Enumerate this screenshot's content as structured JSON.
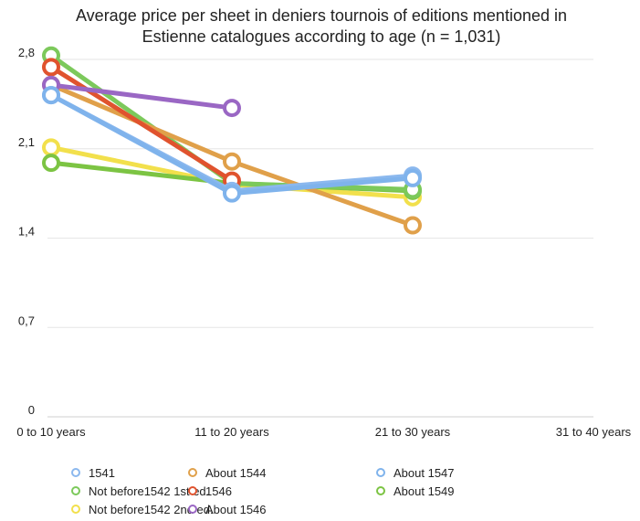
{
  "chart_data": {
    "type": "line",
    "title_lines": [
      "Average price per sheet in deniers tournois of editions mentioned in",
      "Estienne catalogues according to age (n = 1,031)"
    ],
    "categories": [
      "0 to 10 years",
      "11 to 20 years",
      "21 to 30 years",
      "31 to 40 years"
    ],
    "y_ticks": [
      "0",
      "0,7",
      "1,4",
      "2,1",
      "2,8"
    ],
    "ylim": [
      0,
      2.8
    ],
    "grid": true,
    "legend_position": "bottom",
    "series": [
      {
        "name": "1541",
        "color": "#8bb8ee",
        "values": [
          2.52,
          1.77,
          1.89,
          null
        ]
      },
      {
        "name": "About 1544",
        "color": "#e0a04a",
        "values": [
          2.6,
          2.0,
          1.5,
          null
        ]
      },
      {
        "name": "About 1547",
        "color": "#7fb3ec",
        "values": [
          2.52,
          1.75,
          1.87,
          null
        ]
      },
      {
        "name": "Not before1542 1st ed.",
        "color": "#7cc95b",
        "values": [
          2.83,
          1.83,
          1.78,
          null
        ]
      },
      {
        "name": "1546",
        "color": "#e0532e",
        "values": [
          2.74,
          1.85,
          null,
          null
        ]
      },
      {
        "name": "About 1549",
        "color": "#7cc443",
        "values": [
          1.99,
          1.83,
          1.77,
          null
        ]
      },
      {
        "name": "Not before1542 2nd ed.",
        "color": "#f2e04c",
        "values": [
          2.11,
          1.82,
          1.72,
          null
        ]
      },
      {
        "name": "About 1546",
        "color": "#9a67c4",
        "values": [
          2.6,
          2.42,
          null,
          null
        ]
      }
    ],
    "draw_order": [
      6,
      5,
      3,
      1,
      4,
      7,
      0,
      2
    ],
    "legend_order": [
      0,
      3,
      6,
      1,
      4,
      7,
      2,
      5
    ]
  }
}
